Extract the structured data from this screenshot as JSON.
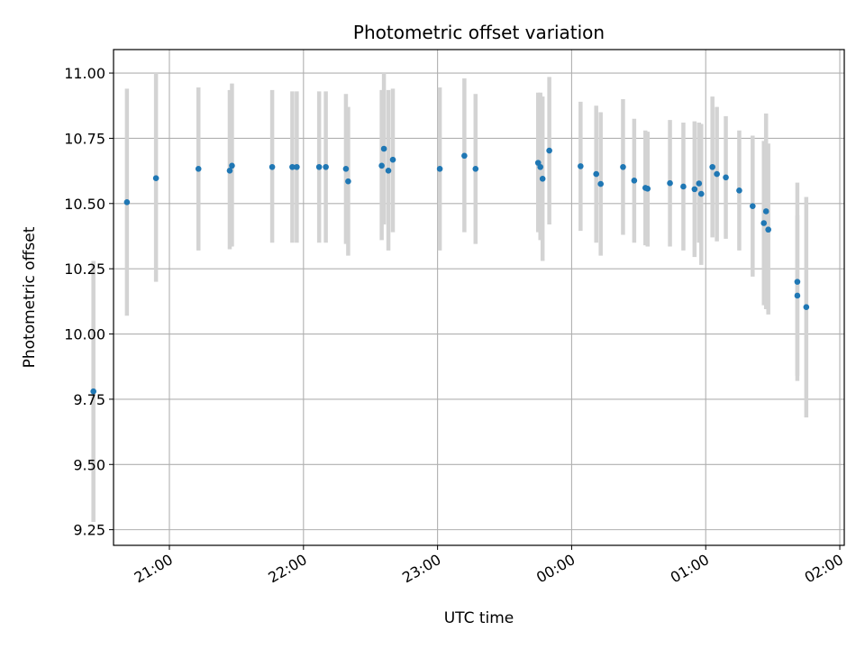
{
  "chart_data": {
    "type": "scatter",
    "title": "Photometric offset variation",
    "xlabel": "UTC time",
    "ylabel": "Photometric offset",
    "grid": true,
    "x_is_time": true,
    "xlim": [
      "20:35",
      "02:02"
    ],
    "ylim": [
      9.19,
      11.09
    ],
    "xticks": [
      "21:00",
      "22:00",
      "23:00",
      "00:00",
      "01:00",
      "02:00"
    ],
    "yticks": [
      9.25,
      9.5,
      9.75,
      10.0,
      10.25,
      10.5,
      10.75,
      11.0
    ],
    "ytick_labels": [
      "9.25",
      "9.50",
      "9.75",
      "10.00",
      "10.25",
      "10.50",
      "10.75",
      "11.00"
    ],
    "colors": {
      "marker": "#1f77b4",
      "errorbar": "#d3d3d3",
      "grid": "#b0b0b0",
      "axes": "#000000"
    },
    "series": [
      {
        "points": [
          {
            "t": "20:26",
            "y": 9.78,
            "lo": 9.28,
            "hi": 10.28
          },
          {
            "t": "20:41",
            "y": 10.505,
            "lo": 10.07,
            "hi": 10.94
          },
          {
            "t": "20:54",
            "y": 10.597,
            "lo": 10.2,
            "hi": 11.0
          },
          {
            "t": "21:13",
            "y": 10.633,
            "lo": 10.32,
            "hi": 10.945
          },
          {
            "t": "21:27",
            "y": 10.626,
            "lo": 10.325,
            "hi": 10.935
          },
          {
            "t": "21:28",
            "y": 10.645,
            "lo": 10.335,
            "hi": 10.96
          },
          {
            "t": "21:46",
            "y": 10.64,
            "lo": 10.35,
            "hi": 10.935
          },
          {
            "t": "21:55",
            "y": 10.64,
            "lo": 10.35,
            "hi": 10.93
          },
          {
            "t": "21:57",
            "y": 10.64,
            "lo": 10.35,
            "hi": 10.93
          },
          {
            "t": "22:07",
            "y": 10.64,
            "lo": 10.35,
            "hi": 10.93
          },
          {
            "t": "22:10",
            "y": 10.64,
            "lo": 10.35,
            "hi": 10.93
          },
          {
            "t": "22:19",
            "y": 10.633,
            "lo": 10.345,
            "hi": 10.92
          },
          {
            "t": "22:20",
            "y": 10.585,
            "lo": 10.3,
            "hi": 10.87
          },
          {
            "t": "22:35",
            "y": 10.645,
            "lo": 10.36,
            "hi": 10.935
          },
          {
            "t": "22:36",
            "y": 10.71,
            "lo": 10.42,
            "hi": 11.0
          },
          {
            "t": "22:38",
            "y": 10.626,
            "lo": 10.32,
            "hi": 10.935
          },
          {
            "t": "22:40",
            "y": 10.668,
            "lo": 10.39,
            "hi": 10.94
          },
          {
            "t": "23:01",
            "y": 10.633,
            "lo": 10.32,
            "hi": 10.945
          },
          {
            "t": "23:12",
            "y": 10.683,
            "lo": 10.39,
            "hi": 10.98
          },
          {
            "t": "23:17",
            "y": 10.633,
            "lo": 10.345,
            "hi": 10.92
          },
          {
            "t": "23:45",
            "y": 10.656,
            "lo": 10.39,
            "hi": 10.925
          },
          {
            "t": "23:46",
            "y": 10.64,
            "lo": 10.36,
            "hi": 10.925
          },
          {
            "t": "23:47",
            "y": 10.595,
            "lo": 10.28,
            "hi": 10.91
          },
          {
            "t": "23:50",
            "y": 10.703,
            "lo": 10.42,
            "hi": 10.985
          },
          {
            "t": "00:04",
            "y": 10.643,
            "lo": 10.395,
            "hi": 10.89
          },
          {
            "t": "00:11",
            "y": 10.613,
            "lo": 10.35,
            "hi": 10.875
          },
          {
            "t": "00:13",
            "y": 10.575,
            "lo": 10.3,
            "hi": 10.85
          },
          {
            "t": "00:23",
            "y": 10.64,
            "lo": 10.38,
            "hi": 10.9
          },
          {
            "t": "00:28",
            "y": 10.588,
            "lo": 10.35,
            "hi": 10.825
          },
          {
            "t": "00:33",
            "y": 10.56,
            "lo": 10.34,
            "hi": 10.78
          },
          {
            "t": "00:34",
            "y": 10.557,
            "lo": 10.335,
            "hi": 10.775
          },
          {
            "t": "00:44",
            "y": 10.578,
            "lo": 10.335,
            "hi": 10.82
          },
          {
            "t": "00:50",
            "y": 10.565,
            "lo": 10.32,
            "hi": 10.81
          },
          {
            "t": "00:55",
            "y": 10.555,
            "lo": 10.295,
            "hi": 10.815
          },
          {
            "t": "00:57",
            "y": 10.577,
            "lo": 10.35,
            "hi": 10.81
          },
          {
            "t": "00:58",
            "y": 10.537,
            "lo": 10.265,
            "hi": 10.805
          },
          {
            "t": "01:03",
            "y": 10.64,
            "lo": 10.37,
            "hi": 10.91
          },
          {
            "t": "01:05",
            "y": 10.613,
            "lo": 10.355,
            "hi": 10.87
          },
          {
            "t": "01:09",
            "y": 10.6,
            "lo": 10.365,
            "hi": 10.835
          },
          {
            "t": "01:15",
            "y": 10.55,
            "lo": 10.32,
            "hi": 10.78
          },
          {
            "t": "01:21",
            "y": 10.49,
            "lo": 10.22,
            "hi": 10.76
          },
          {
            "t": "01:26",
            "y": 10.425,
            "lo": 10.11,
            "hi": 10.74
          },
          {
            "t": "01:27",
            "y": 10.47,
            "lo": 10.095,
            "hi": 10.845
          },
          {
            "t": "01:28",
            "y": 10.4,
            "lo": 10.075,
            "hi": 10.73
          },
          {
            "t": "01:41",
            "y": 10.2,
            "lo": 9.82,
            "hi": 10.58
          },
          {
            "t": "01:41",
            "y": 10.147,
            "lo": 9.84,
            "hi": 10.455
          },
          {
            "t": "01:45",
            "y": 10.103,
            "lo": 9.68,
            "hi": 10.525
          }
        ]
      }
    ]
  }
}
